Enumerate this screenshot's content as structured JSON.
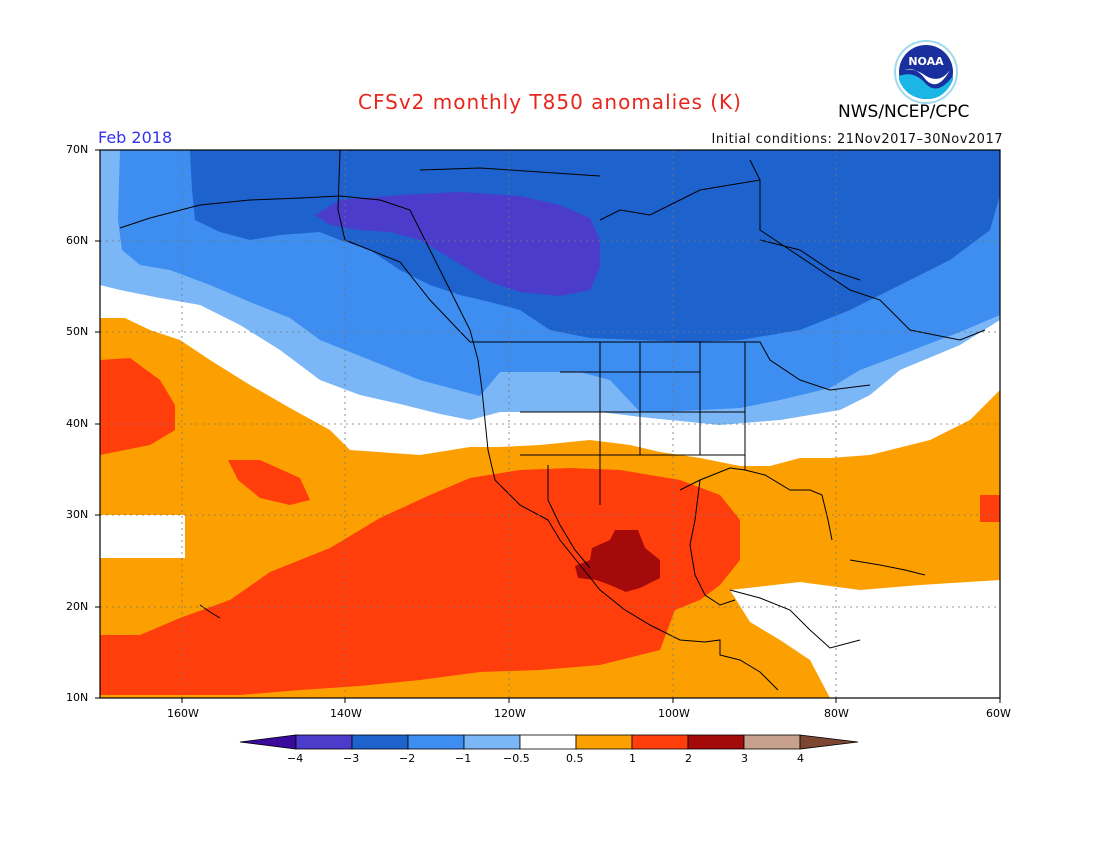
{
  "header": {
    "title": "CFSv2 monthly T850 anomalies (K)",
    "agency": "NWS/NCEP/CPC",
    "period": "Feb 2018",
    "initial_conditions": "Initial conditions: 21Nov2017–30Nov2017",
    "logo_text": "NOAA"
  },
  "colors": {
    "title": "#e8261c",
    "period": "#3333ee",
    "lt_minus4": "#3a0b9b",
    "m4_m3": "#4b3ccc",
    "m3_m2": "#1d62cd",
    "m2_m1": "#3d8ef0",
    "m1_m05": "#7bb6f7",
    "neutral": "#ffffff",
    "p05_p1": "#fba000",
    "p1_p2": "#ff3e0c",
    "p2_p3": "#a50a0a",
    "p3_p4": "#c8a08e",
    "gt_p4": "#7d4632"
  },
  "axes": {
    "lat_labels": [
      "70N",
      "60N",
      "50N",
      "40N",
      "30N",
      "20N",
      "10N"
    ],
    "lon_labels": [
      "160W",
      "140W",
      "120W",
      "100W",
      "80W",
      "60W"
    ]
  },
  "legend": {
    "labels": [
      "−4",
      "−3",
      "−2",
      "−1",
      "−0.5",
      "0.5",
      "1",
      "2",
      "3",
      "4"
    ],
    "colors": [
      "#3a0b9b",
      "#4b3ccc",
      "#1d62cd",
      "#3d8ef0",
      "#7bb6f7",
      "#ffffff",
      "#fba000",
      "#ff3e0c",
      "#a50a0a",
      "#c8a08e",
      "#7d4632"
    ]
  }
}
